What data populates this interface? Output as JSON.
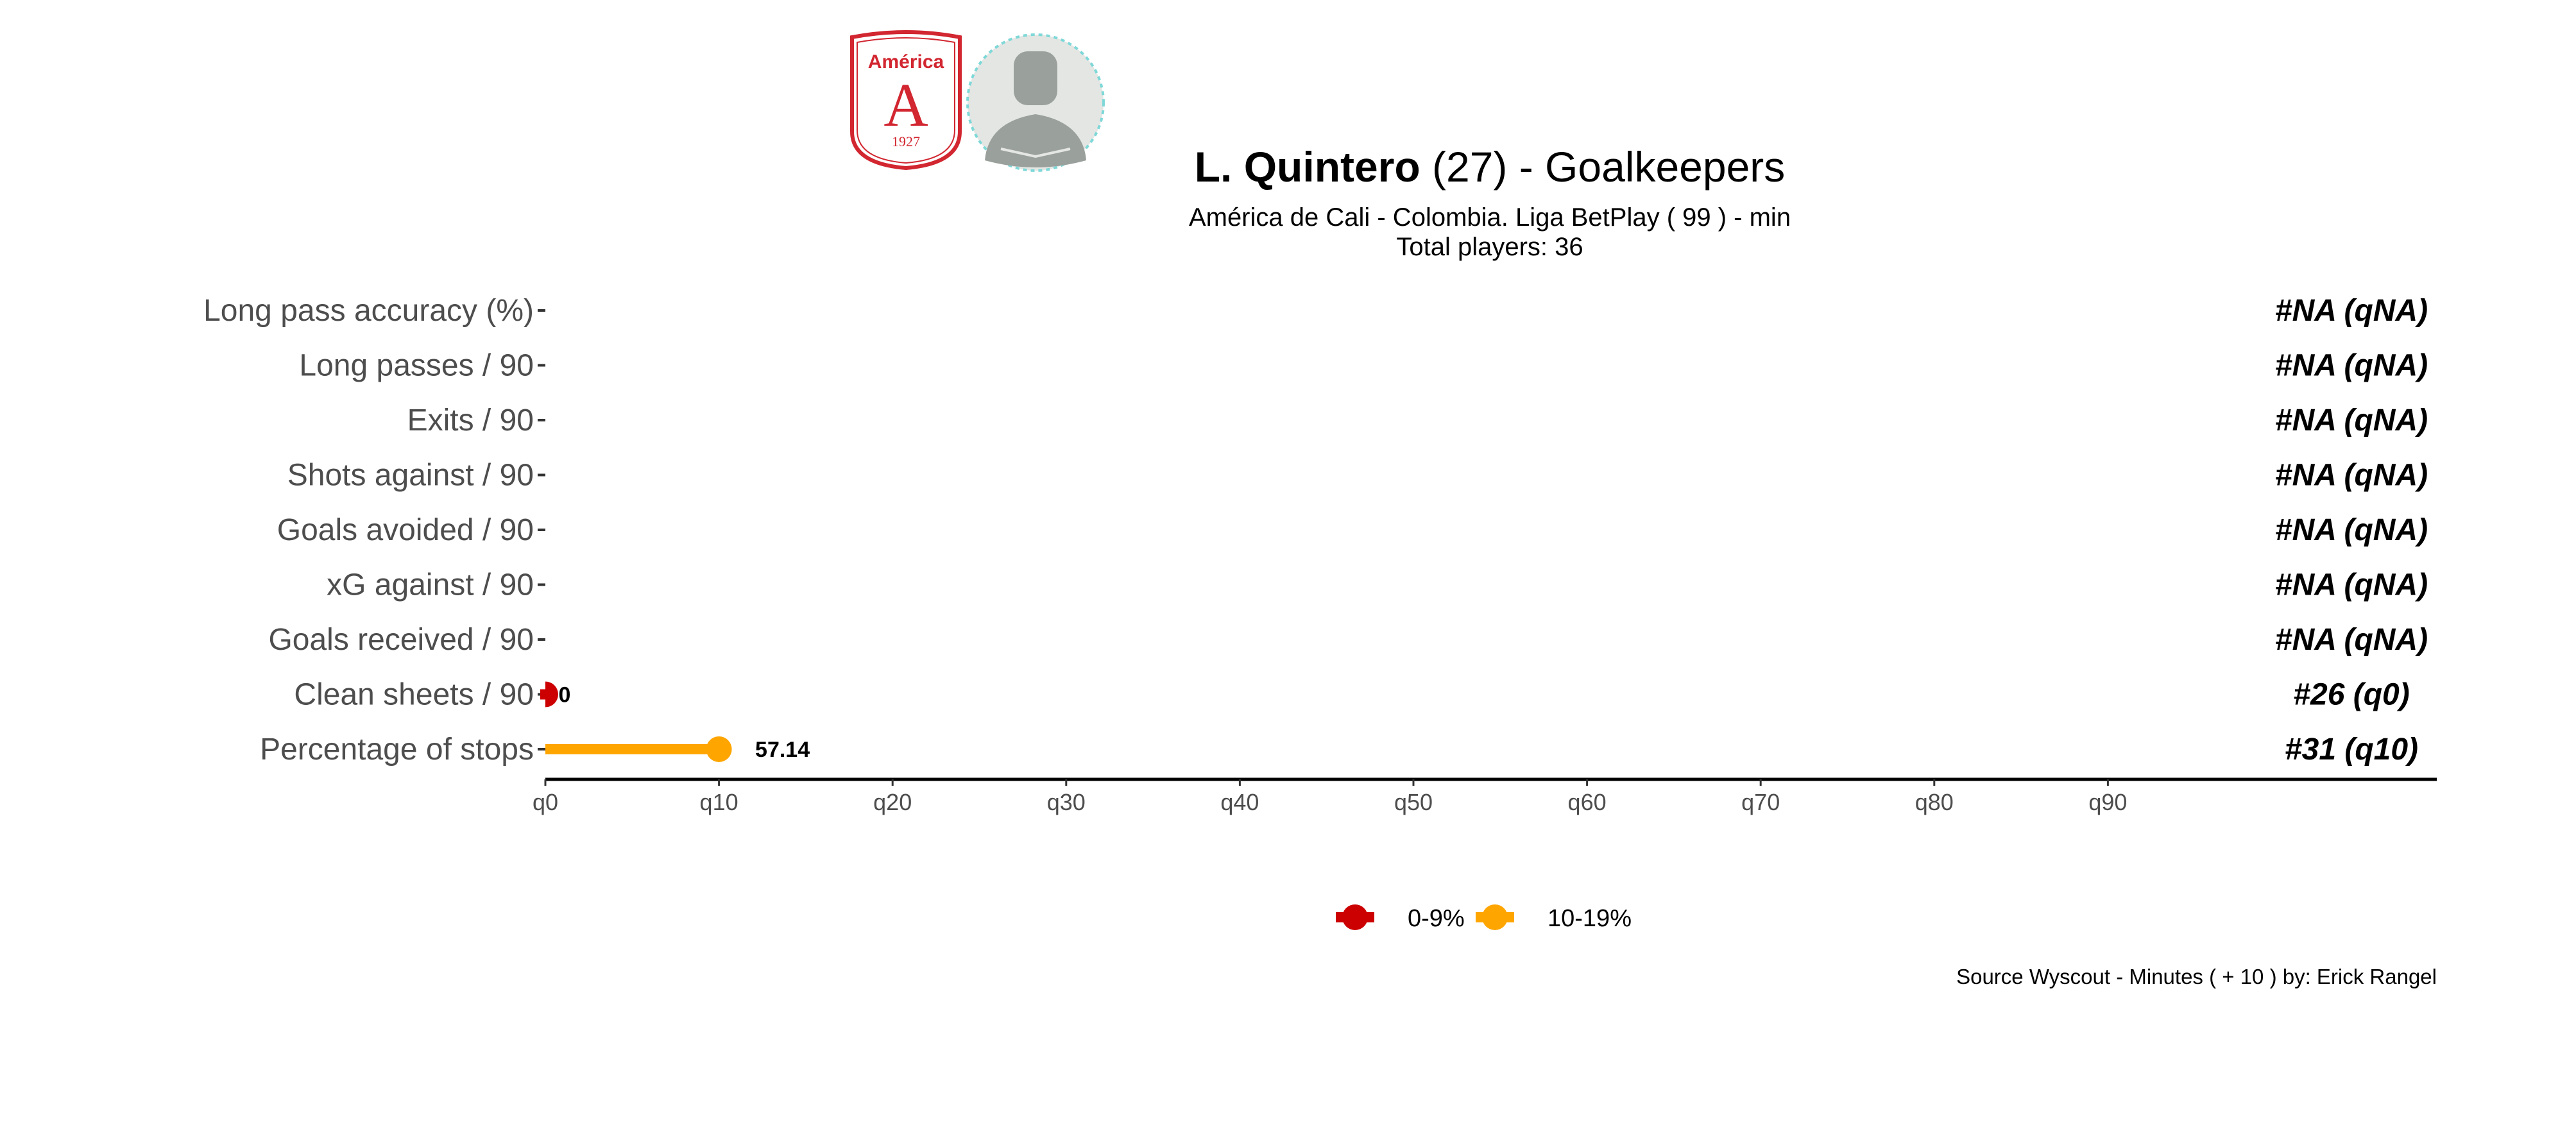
{
  "header": {
    "player_name": "L. Quintero",
    "age_text": " (27) -  Goalkeepers",
    "subtitle": "América de Cali  -  Colombia. Liga BetPlay  ( 99 ) - min",
    "total_players": "Total players:  36",
    "team_logo": {
      "icon": "club-crest-icon",
      "name": "América",
      "letter": "A",
      "year": "1927",
      "color": "#d22630"
    },
    "player_photo": {
      "icon": "player-silhouette-icon",
      "color": "#9aa09c"
    }
  },
  "chart_data": {
    "type": "lollipop",
    "x_axis": {
      "ticks": [
        "q0",
        "q10",
        "q20",
        "q30",
        "q40",
        "q50",
        "q60",
        "q70",
        "q80",
        "q90"
      ],
      "range": [
        0,
        108
      ]
    },
    "metrics": [
      {
        "label": "Long pass accuracy (%)",
        "percentile": null,
        "value_label": null,
        "rank": "#NA (qNA)"
      },
      {
        "label": "Long passes / 90",
        "percentile": null,
        "value_label": null,
        "rank": "#NA (qNA)"
      },
      {
        "label": "Exits / 90",
        "percentile": null,
        "value_label": null,
        "rank": "#NA (qNA)"
      },
      {
        "label": "Shots against / 90",
        "percentile": null,
        "value_label": null,
        "rank": "#NA (qNA)"
      },
      {
        "label": "Goals avoided / 90",
        "percentile": null,
        "value_label": null,
        "rank": "#NA (qNA)"
      },
      {
        "label": "xG against / 90",
        "percentile": null,
        "value_label": null,
        "rank": "#NA (qNA)"
      },
      {
        "label": "Goals received / 90",
        "percentile": null,
        "value_label": null,
        "rank": "#NA (qNA)"
      },
      {
        "label": "Clean sheets / 90",
        "percentile": 0,
        "value_label": "0",
        "rank": "#26 (q0)",
        "color": "#cc0000"
      },
      {
        "label": "Percentage of stops",
        "percentile": 10,
        "value_label": "57.14",
        "rank": "#31 (q10)",
        "color": "#ffa500"
      }
    ],
    "legend": [
      {
        "label": "0-9%",
        "color": "#cc0000"
      },
      {
        "label": "10-19%",
        "color": "#ffa500"
      }
    ],
    "caption": "Source Wyscout - Minutes ( + 10 ) by: Erick Rangel",
    "grid": false,
    "legend_position": "bottom"
  }
}
